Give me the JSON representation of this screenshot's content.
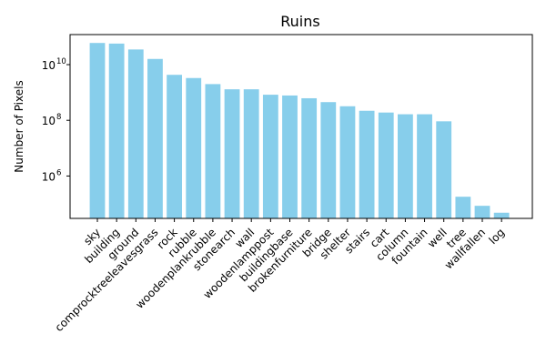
{
  "chart_data": {
    "type": "bar",
    "title": "Ruins",
    "xlabel": "",
    "ylabel": "Number of Pixels",
    "yscale": "log",
    "ylim": [
      30000,
      120000000000
    ],
    "yticks": [
      {
        "value": 1000000,
        "base": "10",
        "exp": "6"
      },
      {
        "value": 100000000,
        "base": "10",
        "exp": "8"
      },
      {
        "value": 10000000000,
        "base": "10",
        "exp": "10"
      }
    ],
    "grid": false,
    "bar_color": "#87CEEB",
    "categories": [
      "sky",
      "building",
      "ground",
      "comprocktreeleavesgrass",
      "rock",
      "rubble",
      "woodenplankrubble",
      "stonearch",
      "wall",
      "woodenlamppost",
      "buildingbase",
      "brokenfurniture",
      "bridge",
      "shelter",
      "stairs",
      "cart",
      "column",
      "fountain",
      "well",
      "tree",
      "wallfallen",
      "log"
    ],
    "values": [
      60000000000,
      57000000000,
      35000000000,
      16000000000,
      4300000000,
      3300000000,
      2000000000,
      1300000000,
      1300000000,
      830000000,
      780000000,
      620000000,
      450000000,
      320000000,
      220000000,
      190000000,
      165000000,
      165000000,
      92000000,
      180000,
      85000,
      48000
    ]
  }
}
